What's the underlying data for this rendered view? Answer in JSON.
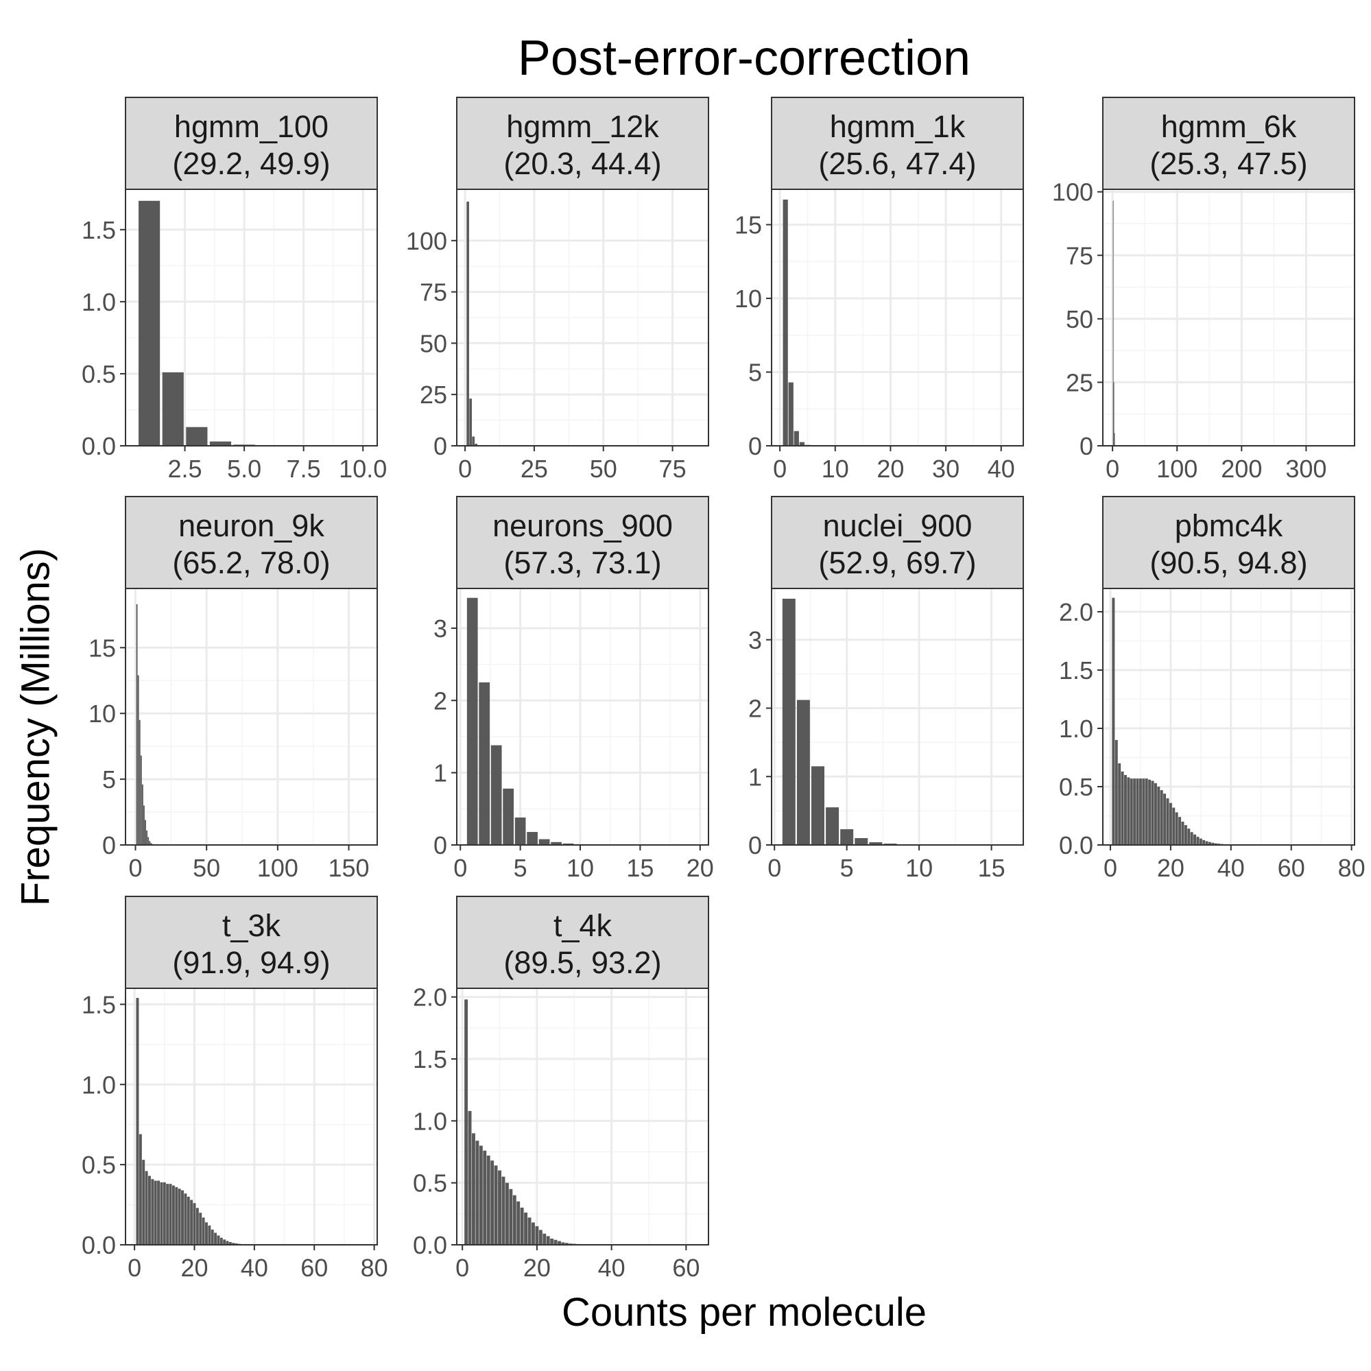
{
  "title": "Post-error-correction",
  "xlabel": "Counts per molecule",
  "ylabel": "Frequency (Millions)",
  "colors": {
    "bar": "#595959",
    "strip_fill": "#d9d9d9",
    "grid_major": "#ebebeb",
    "grid_minor": "#f4f4f4",
    "frame": "#333333"
  },
  "chart_data": [
    {
      "type": "bar",
      "name": "hgmm_100",
      "subtitle": "(29.2, 49.9)",
      "xlim": [
        0,
        10.6
      ],
      "ylim": [
        0,
        1.78
      ],
      "xticks": [
        2.5,
        5.0,
        7.5,
        10.0
      ],
      "xtick_labels": [
        "2.5",
        "5.0",
        "7.5",
        "10.0"
      ],
      "yticks": [
        0,
        0.5,
        1.0,
        1.5
      ],
      "ytick_labels": [
        "0.0",
        "0.5",
        "1.0",
        "1.5"
      ],
      "x": [
        1,
        2,
        3,
        4,
        5
      ],
      "values": [
        1.7,
        0.51,
        0.13,
        0.03,
        0.008
      ]
    },
    {
      "type": "bar",
      "name": "hgmm_12k",
      "subtitle": "(20.3, 44.4)",
      "xlim": [
        -3,
        88
      ],
      "ylim": [
        0,
        125
      ],
      "xticks": [
        0,
        25,
        50,
        75
      ],
      "xtick_labels": [
        "0",
        "25",
        "50",
        "75"
      ],
      "yticks": [
        0,
        25,
        50,
        75,
        100
      ],
      "ytick_labels": [
        "0",
        "25",
        "50",
        "75",
        "100"
      ],
      "x": [
        1,
        2,
        3,
        4,
        5
      ],
      "values": [
        119,
        23,
        4.5,
        1.0,
        0.2
      ]
    },
    {
      "type": "bar",
      "name": "hgmm_1k",
      "subtitle": "(25.6, 47.4)",
      "xlim": [
        -1.5,
        44
      ],
      "ylim": [
        0,
        17.4
      ],
      "xticks": [
        0,
        10,
        20,
        30,
        40
      ],
      "xtick_labels": [
        "0",
        "10",
        "20",
        "30",
        "40"
      ],
      "yticks": [
        0,
        5,
        10,
        15
      ],
      "ytick_labels": [
        "0",
        "5",
        "10",
        "15"
      ],
      "x": [
        1,
        2,
        3,
        4,
        5
      ],
      "values": [
        16.7,
        4.3,
        1.0,
        0.25,
        0.06
      ]
    },
    {
      "type": "bar",
      "name": "hgmm_6k",
      "subtitle": "(25.3, 47.5)",
      "xlim": [
        -15,
        375
      ],
      "ylim": [
        0,
        101
      ],
      "xticks": [
        0,
        100,
        200,
        300
      ],
      "xtick_labels": [
        "0",
        "100",
        "200",
        "300"
      ],
      "yticks": [
        0,
        25,
        50,
        75,
        100
      ],
      "ytick_labels": [
        "0",
        "25",
        "50",
        "75",
        "100"
      ],
      "x": [
        1,
        2,
        3
      ],
      "values": [
        96.5,
        25,
        5
      ]
    },
    {
      "type": "bar",
      "name": "neuron_9k",
      "subtitle": "(65.2, 78.0)",
      "xlim": [
        -7,
        170
      ],
      "ylim": [
        0,
        19.5
      ],
      "xticks": [
        0,
        50,
        100,
        150
      ],
      "xtick_labels": [
        "0",
        "50",
        "100",
        "150"
      ],
      "yticks": [
        0,
        5,
        10,
        15
      ],
      "ytick_labels": [
        "0",
        "5",
        "10",
        "15"
      ],
      "x": [
        1,
        2,
        3,
        4,
        5,
        6,
        7,
        8,
        9,
        10,
        11,
        12
      ],
      "values": [
        18.3,
        12.9,
        9.5,
        6.8,
        4.6,
        3.0,
        1.9,
        1.1,
        0.6,
        0.3,
        0.15,
        0.07
      ]
    },
    {
      "type": "bar",
      "name": "neurons_900",
      "subtitle": "(57.3, 73.1)",
      "xlim": [
        -0.3,
        20.7
      ],
      "ylim": [
        0,
        3.55
      ],
      "xticks": [
        0,
        5,
        10,
        15,
        20
      ],
      "xtick_labels": [
        "0",
        "5",
        "10",
        "15",
        "20"
      ],
      "yticks": [
        0,
        1,
        2,
        3
      ],
      "ytick_labels": [
        "0",
        "1",
        "2",
        "3"
      ],
      "x": [
        1,
        2,
        3,
        4,
        5,
        6,
        7,
        8,
        9,
        10,
        11
      ],
      "values": [
        3.42,
        2.25,
        1.38,
        0.78,
        0.38,
        0.18,
        0.08,
        0.04,
        0.02,
        0.01,
        0.005
      ]
    },
    {
      "type": "bar",
      "name": "nuclei_900",
      "subtitle": "(52.9, 69.7)",
      "xlim": [
        -0.2,
        17.2
      ],
      "ylim": [
        0,
        3.75
      ],
      "xticks": [
        0,
        5,
        10,
        15
      ],
      "xtick_labels": [
        "0",
        "5",
        "10",
        "15"
      ],
      "yticks": [
        0,
        1,
        2,
        3
      ],
      "ytick_labels": [
        "0",
        "1",
        "2",
        "3"
      ],
      "x": [
        1,
        2,
        3,
        4,
        5,
        6,
        7,
        8,
        9,
        10
      ],
      "values": [
        3.6,
        2.12,
        1.15,
        0.55,
        0.23,
        0.1,
        0.04,
        0.02,
        0.01,
        0.005
      ]
    },
    {
      "type": "bar",
      "name": "pbmc4k",
      "subtitle": "(90.5, 94.8)",
      "xlim": [
        -2.5,
        81
      ],
      "ylim": [
        0,
        2.2
      ],
      "xticks": [
        0,
        20,
        40,
        60,
        80
      ],
      "xtick_labels": [
        "0",
        "20",
        "40",
        "60",
        "80"
      ],
      "yticks": [
        0,
        0.5,
        1.0,
        1.5,
        2.0
      ],
      "ytick_labels": [
        "0.0",
        "0.5",
        "1.0",
        "1.5",
        "2.0"
      ],
      "x": [
        1,
        2,
        3,
        4,
        5,
        6,
        7,
        8,
        9,
        10,
        11,
        12,
        13,
        14,
        15,
        16,
        17,
        18,
        19,
        20,
        21,
        22,
        23,
        24,
        25,
        26,
        27,
        28,
        29,
        30,
        31,
        32,
        33,
        34,
        35,
        36,
        37,
        38,
        39,
        40,
        41,
        42,
        43,
        44,
        45,
        46,
        47,
        48,
        49,
        50
      ],
      "values": [
        2.12,
        0.9,
        0.7,
        0.63,
        0.6,
        0.58,
        0.57,
        0.57,
        0.57,
        0.57,
        0.57,
        0.57,
        0.56,
        0.55,
        0.53,
        0.5,
        0.47,
        0.44,
        0.4,
        0.36,
        0.32,
        0.28,
        0.24,
        0.2,
        0.17,
        0.14,
        0.11,
        0.09,
        0.07,
        0.055,
        0.042,
        0.032,
        0.025,
        0.019,
        0.014,
        0.011,
        0.008,
        0.006,
        0.005,
        0.004,
        0.003,
        0.003,
        0.002,
        0.002,
        0.002,
        0.001,
        0.001,
        0.001,
        0.001,
        0.001
      ]
    },
    {
      "type": "bar",
      "name": "t_3k",
      "subtitle": "(91.9, 94.9)",
      "xlim": [
        -3,
        81
      ],
      "ylim": [
        0,
        1.6
      ],
      "xticks": [
        0,
        20,
        40,
        60,
        80
      ],
      "xtick_labels": [
        "0",
        "20",
        "40",
        "60",
        "80"
      ],
      "yticks": [
        0,
        0.5,
        1.0,
        1.5
      ],
      "ytick_labels": [
        "0.0",
        "0.5",
        "1.0",
        "1.5"
      ],
      "x": [
        1,
        2,
        3,
        4,
        5,
        6,
        7,
        8,
        9,
        10,
        11,
        12,
        13,
        14,
        15,
        16,
        17,
        18,
        19,
        20,
        21,
        22,
        23,
        24,
        25,
        26,
        27,
        28,
        29,
        30,
        31,
        32,
        33,
        34,
        35,
        36,
        37,
        38,
        39,
        40,
        41,
        42
      ],
      "values": [
        1.54,
        0.69,
        0.53,
        0.46,
        0.43,
        0.41,
        0.4,
        0.4,
        0.39,
        0.39,
        0.38,
        0.38,
        0.37,
        0.36,
        0.35,
        0.34,
        0.32,
        0.3,
        0.28,
        0.26,
        0.23,
        0.2,
        0.17,
        0.14,
        0.12,
        0.095,
        0.075,
        0.058,
        0.044,
        0.033,
        0.024,
        0.017,
        0.012,
        0.009,
        0.006,
        0.004,
        0.003,
        0.002,
        0.002,
        0.001,
        0.001,
        0.001
      ]
    },
    {
      "type": "bar",
      "name": "t_4k",
      "subtitle": "(89.5, 93.2)",
      "xlim": [
        -1.5,
        66
      ],
      "ylim": [
        0,
        2.07
      ],
      "xticks": [
        0,
        20,
        40,
        60
      ],
      "xtick_labels": [
        "0",
        "20",
        "40",
        "60"
      ],
      "yticks": [
        0,
        0.5,
        1.0,
        1.5,
        2.0
      ],
      "ytick_labels": [
        "0.0",
        "0.5",
        "1.0",
        "1.5",
        "2.0"
      ],
      "x": [
        1,
        2,
        3,
        4,
        5,
        6,
        7,
        8,
        9,
        10,
        11,
        12,
        13,
        14,
        15,
        16,
        17,
        18,
        19,
        20,
        21,
        22,
        23,
        24,
        25,
        26,
        27,
        28,
        29,
        30,
        31,
        32,
        33,
        34,
        35
      ],
      "values": [
        1.98,
        1.08,
        0.9,
        0.84,
        0.8,
        0.76,
        0.72,
        0.68,
        0.64,
        0.6,
        0.55,
        0.5,
        0.45,
        0.4,
        0.35,
        0.3,
        0.26,
        0.22,
        0.18,
        0.15,
        0.12,
        0.09,
        0.07,
        0.05,
        0.04,
        0.03,
        0.02,
        0.015,
        0.01,
        0.008,
        0.006,
        0.004,
        0.003,
        0.002,
        0.001
      ]
    }
  ]
}
